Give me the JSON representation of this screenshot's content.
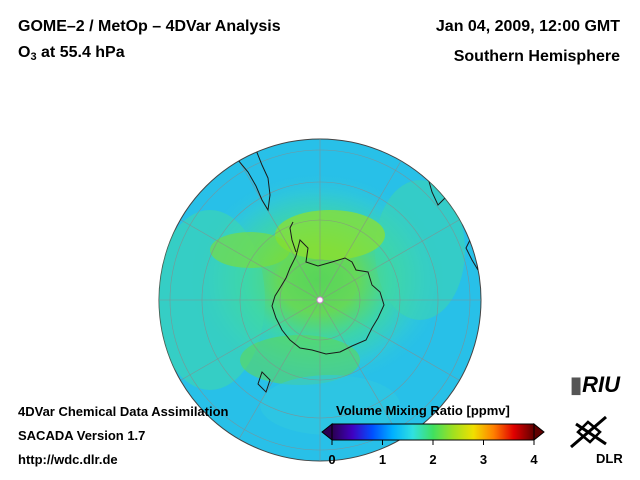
{
  "header": {
    "title": "GOME–2 / MetOp – 4DVar Analysis",
    "species_main": "O",
    "species_sub": "3",
    "level": " at 55.4 hPa",
    "datetime": "Jan 04, 2009, 12:00 GMT",
    "hemisphere": "Southern Hemisphere"
  },
  "footer": {
    "line1": "4DVar Chemical Data Assimilation",
    "line2": "SACADA Version 1.7",
    "line3": "http://wdc.dlr.de"
  },
  "colorbar": {
    "title": "Volume Mixing Ratio [ppmv]",
    "min": 0,
    "max": 4,
    "ticks": [
      "0",
      "1",
      "2",
      "3",
      "4"
    ],
    "stops": [
      "#2a0050",
      "#4000c0",
      "#0050ff",
      "#00b0ff",
      "#30e0e0",
      "#40e060",
      "#a0e020",
      "#f0e000",
      "#ff8000",
      "#e00000",
      "#600000"
    ]
  },
  "map": {
    "ocean_color": "#28c0e8",
    "projection": "orthographic, south pole centered"
  },
  "logos": {
    "riu": "RIU",
    "dlr": "DLR"
  }
}
